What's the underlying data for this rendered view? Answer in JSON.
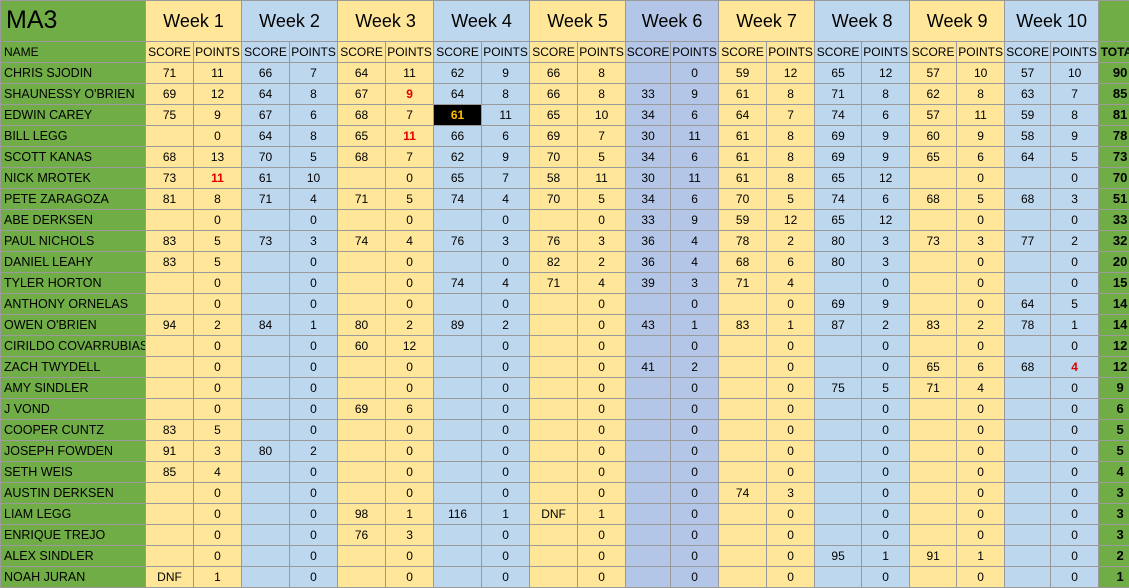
{
  "title": "MA3",
  "name_header": "NAME",
  "total_header": "TOTAL",
  "score_label": "SCORE",
  "points_label": "POINTS",
  "weeks": [
    "Week 1",
    "Week 2",
    "Week 3",
    "Week 4",
    "Week 5",
    "Week 6",
    "Week 7",
    "Week 8",
    "Week 9",
    "Week 10"
  ],
  "colors": {
    "name_green": "#70ad47",
    "week_yellow": "#ffe699",
    "week_blue": "#bdd7ee",
    "week6_blue": "#b4c6e7",
    "highlight_red": "#e00000",
    "highlight_black": "#000000"
  },
  "rows": [
    {
      "name": "CHRIS SJODIN",
      "weeks": [
        [
          "71",
          "11"
        ],
        [
          "66",
          "7"
        ],
        [
          "64",
          "11"
        ],
        [
          "62",
          "9"
        ],
        [
          "66",
          "8"
        ],
        [
          "",
          "0"
        ],
        [
          "59",
          "12"
        ],
        [
          "65",
          "12"
        ],
        [
          "57",
          "10"
        ],
        [
          "57",
          "10"
        ]
      ],
      "total": "90"
    },
    {
      "name": "SHAUNESSY O'BRIEN",
      "weeks": [
        [
          "69",
          "12"
        ],
        [
          "64",
          "8"
        ],
        [
          "67",
          "9"
        ],
        [
          "64",
          "8"
        ],
        [
          "66",
          "8"
        ],
        [
          "33",
          "9"
        ],
        [
          "61",
          "8"
        ],
        [
          "71",
          "8"
        ],
        [
          "62",
          "8"
        ],
        [
          "63",
          "7"
        ]
      ],
      "total": "85"
    },
    {
      "name": "EDWIN CAREY",
      "weeks": [
        [
          "75",
          "9"
        ],
        [
          "67",
          "6"
        ],
        [
          "68",
          "7"
        ],
        [
          "61",
          "11"
        ],
        [
          "65",
          "10"
        ],
        [
          "34",
          "6"
        ],
        [
          "64",
          "7"
        ],
        [
          "74",
          "6"
        ],
        [
          "57",
          "11"
        ],
        [
          "59",
          "8"
        ]
      ],
      "total": "81"
    },
    {
      "name": "BILL LEGG",
      "weeks": [
        [
          "",
          "0"
        ],
        [
          "64",
          "8"
        ],
        [
          "65",
          "11"
        ],
        [
          "66",
          "6"
        ],
        [
          "69",
          "7"
        ],
        [
          "30",
          "11"
        ],
        [
          "61",
          "8"
        ],
        [
          "69",
          "9"
        ],
        [
          "60",
          "9"
        ],
        [
          "58",
          "9"
        ]
      ],
      "total": "78"
    },
    {
      "name": "SCOTT KANAS",
      "weeks": [
        [
          "68",
          "13"
        ],
        [
          "70",
          "5"
        ],
        [
          "68",
          "7"
        ],
        [
          "62",
          "9"
        ],
        [
          "70",
          "5"
        ],
        [
          "34",
          "6"
        ],
        [
          "61",
          "8"
        ],
        [
          "69",
          "9"
        ],
        [
          "65",
          "6"
        ],
        [
          "64",
          "5"
        ]
      ],
      "total": "73"
    },
    {
      "name": "NICK MROTEK",
      "weeks": [
        [
          "73",
          "11"
        ],
        [
          "61",
          "10"
        ],
        [
          "",
          "0"
        ],
        [
          "65",
          "7"
        ],
        [
          "58",
          "11"
        ],
        [
          "30",
          "11"
        ],
        [
          "61",
          "8"
        ],
        [
          "65",
          "12"
        ],
        [
          "",
          "0"
        ],
        [
          "",
          "0"
        ]
      ],
      "total": "70"
    },
    {
      "name": "PETE ZARAGOZA",
      "weeks": [
        [
          "81",
          "8"
        ],
        [
          "71",
          "4"
        ],
        [
          "71",
          "5"
        ],
        [
          "74",
          "4"
        ],
        [
          "70",
          "5"
        ],
        [
          "34",
          "6"
        ],
        [
          "70",
          "5"
        ],
        [
          "74",
          "6"
        ],
        [
          "68",
          "5"
        ],
        [
          "68",
          "3"
        ]
      ],
      "total": "51"
    },
    {
      "name": "ABE DERKSEN",
      "weeks": [
        [
          "",
          "0"
        ],
        [
          "",
          "0"
        ],
        [
          "",
          "0"
        ],
        [
          "",
          "0"
        ],
        [
          "",
          "0"
        ],
        [
          "33",
          "9"
        ],
        [
          "59",
          "12"
        ],
        [
          "65",
          "12"
        ],
        [
          "",
          "0"
        ],
        [
          "",
          "0"
        ]
      ],
      "total": "33"
    },
    {
      "name": "PAUL NICHOLS",
      "weeks": [
        [
          "83",
          "5"
        ],
        [
          "73",
          "3"
        ],
        [
          "74",
          "4"
        ],
        [
          "76",
          "3"
        ],
        [
          "76",
          "3"
        ],
        [
          "36",
          "4"
        ],
        [
          "78",
          "2"
        ],
        [
          "80",
          "3"
        ],
        [
          "73",
          "3"
        ],
        [
          "77",
          "2"
        ]
      ],
      "total": "32"
    },
    {
      "name": "DANIEL LEAHY",
      "weeks": [
        [
          "83",
          "5"
        ],
        [
          "",
          "0"
        ],
        [
          "",
          "0"
        ],
        [
          "",
          "0"
        ],
        [
          "82",
          "2"
        ],
        [
          "36",
          "4"
        ],
        [
          "68",
          "6"
        ],
        [
          "80",
          "3"
        ],
        [
          "",
          "0"
        ],
        [
          "",
          "0"
        ]
      ],
      "total": "20"
    },
    {
      "name": "TYLER HORTON",
      "weeks": [
        [
          "",
          "0"
        ],
        [
          "",
          "0"
        ],
        [
          "",
          "0"
        ],
        [
          "74",
          "4"
        ],
        [
          "71",
          "4"
        ],
        [
          "39",
          "3"
        ],
        [
          "71",
          "4"
        ],
        [
          "",
          "0"
        ],
        [
          "",
          "0"
        ],
        [
          "",
          "0"
        ]
      ],
      "total": "15"
    },
    {
      "name": "ANTHONY ORNELAS",
      "weeks": [
        [
          "",
          "0"
        ],
        [
          "",
          "0"
        ],
        [
          "",
          "0"
        ],
        [
          "",
          "0"
        ],
        [
          "",
          "0"
        ],
        [
          "",
          "0"
        ],
        [
          "",
          "0"
        ],
        [
          "69",
          "9"
        ],
        [
          "",
          "0"
        ],
        [
          "64",
          "5"
        ]
      ],
      "total": "14"
    },
    {
      "name": "OWEN O'BRIEN",
      "weeks": [
        [
          "94",
          "2"
        ],
        [
          "84",
          "1"
        ],
        [
          "80",
          "2"
        ],
        [
          "89",
          "2"
        ],
        [
          "",
          "0"
        ],
        [
          "43",
          "1"
        ],
        [
          "83",
          "1"
        ],
        [
          "87",
          "2"
        ],
        [
          "83",
          "2"
        ],
        [
          "78",
          "1"
        ]
      ],
      "total": "14"
    },
    {
      "name": "CIRILDO COVARRUBIAS",
      "weeks": [
        [
          "",
          "0"
        ],
        [
          "",
          "0"
        ],
        [
          "60",
          "12"
        ],
        [
          "",
          "0"
        ],
        [
          "",
          "0"
        ],
        [
          "",
          "0"
        ],
        [
          "",
          "0"
        ],
        [
          "",
          "0"
        ],
        [
          "",
          "0"
        ],
        [
          "",
          "0"
        ]
      ],
      "total": "12"
    },
    {
      "name": "ZACH TWYDELL",
      "weeks": [
        [
          "",
          "0"
        ],
        [
          "",
          "0"
        ],
        [
          "",
          "0"
        ],
        [
          "",
          "0"
        ],
        [
          "",
          "0"
        ],
        [
          "41",
          "2"
        ],
        [
          "",
          "0"
        ],
        [
          "",
          "0"
        ],
        [
          "65",
          "6"
        ],
        [
          "68",
          "4"
        ]
      ],
      "total": "12"
    },
    {
      "name": "AMY SINDLER",
      "weeks": [
        [
          "",
          "0"
        ],
        [
          "",
          "0"
        ],
        [
          "",
          "0"
        ],
        [
          "",
          "0"
        ],
        [
          "",
          "0"
        ],
        [
          "",
          "0"
        ],
        [
          "",
          "0"
        ],
        [
          "75",
          "5"
        ],
        [
          "71",
          "4"
        ],
        [
          "",
          "0"
        ]
      ],
      "total": "9"
    },
    {
      "name": "J VOND",
      "weeks": [
        [
          "",
          "0"
        ],
        [
          "",
          "0"
        ],
        [
          "69",
          "6"
        ],
        [
          "",
          "0"
        ],
        [
          "",
          "0"
        ],
        [
          "",
          "0"
        ],
        [
          "",
          "0"
        ],
        [
          "",
          "0"
        ],
        [
          "",
          "0"
        ],
        [
          "",
          "0"
        ]
      ],
      "total": "6"
    },
    {
      "name": "COOPER CUNTZ",
      "weeks": [
        [
          "83",
          "5"
        ],
        [
          "",
          "0"
        ],
        [
          "",
          "0"
        ],
        [
          "",
          "0"
        ],
        [
          "",
          "0"
        ],
        [
          "",
          "0"
        ],
        [
          "",
          "0"
        ],
        [
          "",
          "0"
        ],
        [
          "",
          "0"
        ],
        [
          "",
          "0"
        ]
      ],
      "total": "5"
    },
    {
      "name": "JOSEPH FOWDEN",
      "weeks": [
        [
          "91",
          "3"
        ],
        [
          "80",
          "2"
        ],
        [
          "",
          "0"
        ],
        [
          "",
          "0"
        ],
        [
          "",
          "0"
        ],
        [
          "",
          "0"
        ],
        [
          "",
          "0"
        ],
        [
          "",
          "0"
        ],
        [
          "",
          "0"
        ],
        [
          "",
          "0"
        ]
      ],
      "total": "5"
    },
    {
      "name": "SETH WEIS",
      "weeks": [
        [
          "85",
          "4"
        ],
        [
          "",
          "0"
        ],
        [
          "",
          "0"
        ],
        [
          "",
          "0"
        ],
        [
          "",
          "0"
        ],
        [
          "",
          "0"
        ],
        [
          "",
          "0"
        ],
        [
          "",
          "0"
        ],
        [
          "",
          "0"
        ],
        [
          "",
          "0"
        ]
      ],
      "total": "4"
    },
    {
      "name": "AUSTIN DERKSEN",
      "weeks": [
        [
          "",
          "0"
        ],
        [
          "",
          "0"
        ],
        [
          "",
          "0"
        ],
        [
          "",
          "0"
        ],
        [
          "",
          "0"
        ],
        [
          "",
          "0"
        ],
        [
          "74",
          "3"
        ],
        [
          "",
          "0"
        ],
        [
          "",
          "0"
        ],
        [
          "",
          "0"
        ]
      ],
      "total": "3"
    },
    {
      "name": "LIAM LEGG",
      "weeks": [
        [
          "",
          "0"
        ],
        [
          "",
          "0"
        ],
        [
          "98",
          "1"
        ],
        [
          "116",
          "1"
        ],
        [
          "DNF",
          "1"
        ],
        [
          "",
          "0"
        ],
        [
          "",
          "0"
        ],
        [
          "",
          "0"
        ],
        [
          "",
          "0"
        ],
        [
          "",
          "0"
        ]
      ],
      "total": "3"
    },
    {
      "name": "ENRIQUE TREJO",
      "weeks": [
        [
          "",
          "0"
        ],
        [
          "",
          "0"
        ],
        [
          "76",
          "3"
        ],
        [
          "",
          "0"
        ],
        [
          "",
          "0"
        ],
        [
          "",
          "0"
        ],
        [
          "",
          "0"
        ],
        [
          "",
          "0"
        ],
        [
          "",
          "0"
        ],
        [
          "",
          "0"
        ]
      ],
      "total": "3"
    },
    {
      "name": "ALEX SINDLER",
      "weeks": [
        [
          "",
          "0"
        ],
        [
          "",
          "0"
        ],
        [
          "",
          "0"
        ],
        [
          "",
          "0"
        ],
        [
          "",
          "0"
        ],
        [
          "",
          "0"
        ],
        [
          "",
          "0"
        ],
        [
          "95",
          "1"
        ],
        [
          "91",
          "1"
        ],
        [
          "",
          "0"
        ]
      ],
      "total": "2"
    },
    {
      "name": "NOAH JURAN",
      "weeks": [
        [
          "DNF",
          "1"
        ],
        [
          "",
          "0"
        ],
        [
          "",
          "0"
        ],
        [
          "",
          "0"
        ],
        [
          "",
          "0"
        ],
        [
          "",
          "0"
        ],
        [
          "",
          "0"
        ],
        [
          "",
          "0"
        ],
        [
          "",
          "0"
        ],
        [
          "",
          "0"
        ]
      ],
      "total": "1"
    }
  ],
  "red_points": [
    [
      1,
      2,
      0
    ],
    [
      3,
      2,
      2
    ],
    [
      5,
      0,
      1
    ],
    [
      14,
      9,
      1
    ]
  ],
  "black_scores": [
    [
      2,
      3,
      0
    ]
  ]
}
